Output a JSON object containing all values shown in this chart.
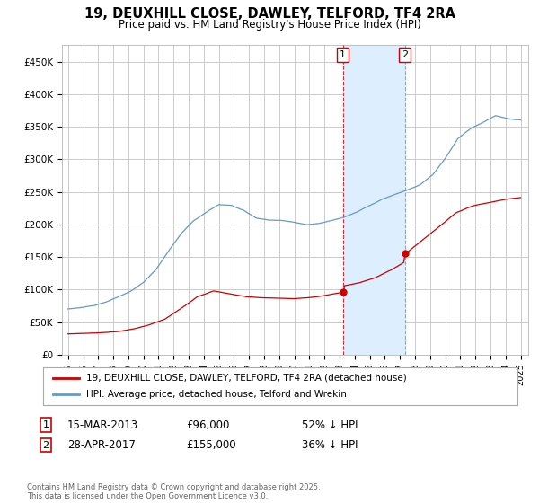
{
  "title": "19, DEUXHILL CLOSE, DAWLEY, TELFORD, TF4 2RA",
  "subtitle": "Price paid vs. HM Land Registry's House Price Index (HPI)",
  "ylim": [
    0,
    475000
  ],
  "yticks": [
    0,
    50000,
    100000,
    150000,
    200000,
    250000,
    300000,
    350000,
    400000,
    450000
  ],
  "ytick_labels": [
    "£0",
    "£50K",
    "£100K",
    "£150K",
    "£200K",
    "£250K",
    "£300K",
    "£350K",
    "£400K",
    "£450K"
  ],
  "transaction1_date": 2013.21,
  "transaction1_price": 96000,
  "transaction1_label": "1",
  "transaction2_date": 2017.32,
  "transaction2_price": 155000,
  "transaction2_label": "2",
  "legend_label_red": "19, DEUXHILL CLOSE, DAWLEY, TELFORD, TF4 2RA (detached house)",
  "legend_label_blue": "HPI: Average price, detached house, Telford and Wrekin",
  "ann1_num": "1",
  "ann1_date": "15-MAR-2013",
  "ann1_price": "£96,000",
  "ann1_hpi": "52% ↓ HPI",
  "ann2_num": "2",
  "ann2_date": "28-APR-2017",
  "ann2_price": "£155,000",
  "ann2_hpi": "36% ↓ HPI",
  "footer": "Contains HM Land Registry data © Crown copyright and database right 2025.\nThis data is licensed under the Open Government Licence v3.0.",
  "red_color": "#cc0000",
  "blue_color": "#6699cc",
  "shade_color": "#ddeeff",
  "vline1_color": "#cc0000",
  "vline2_color": "#6699cc",
  "background_color": "#ffffff",
  "grid_color": "#cccccc"
}
